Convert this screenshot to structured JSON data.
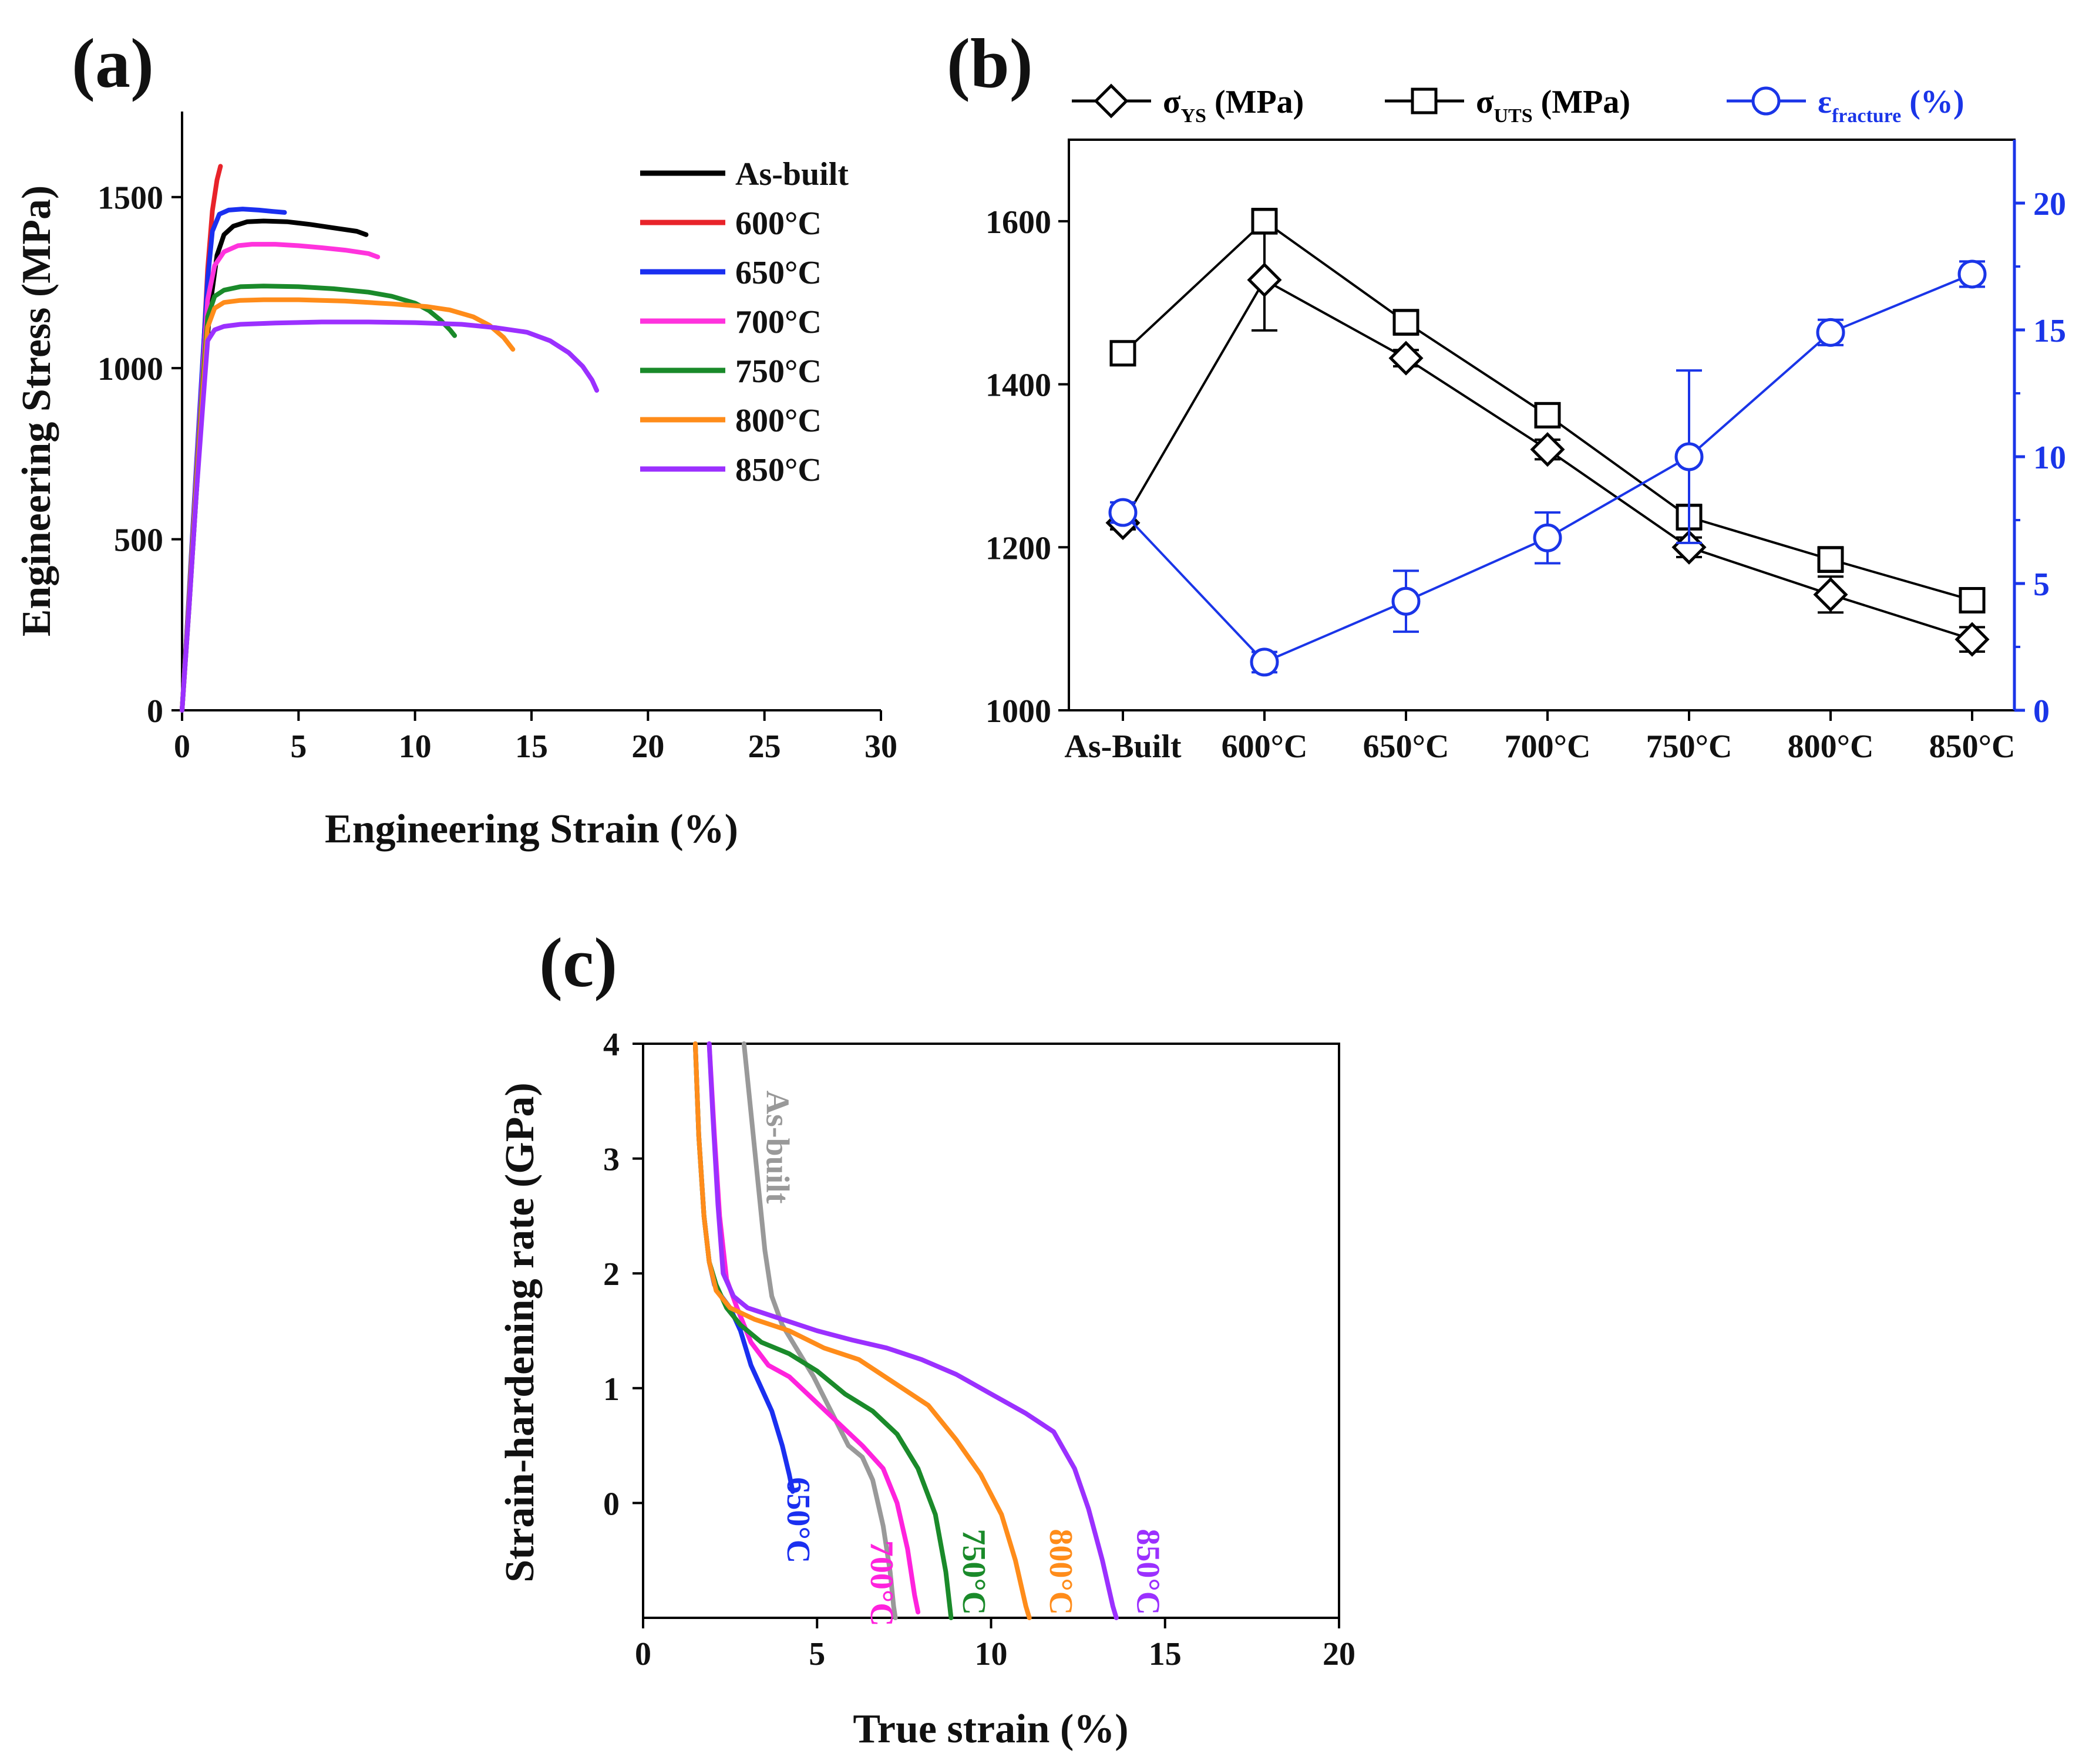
{
  "figure": {
    "panel_a_label": "(a)",
    "panel_b_label": "(b)",
    "panel_c_label": "(c)"
  },
  "chart_data": [
    {
      "id": "a",
      "type": "line",
      "title": "",
      "xlabel": "Engineering Strain (%)",
      "ylabel": "Engineering Stress (MPa)",
      "xlim": [
        0,
        30
      ],
      "ylim": [
        0,
        1750
      ],
      "xticks": [
        "0",
        "5",
        "10",
        "15",
        "20",
        "25",
        "30"
      ],
      "yticks": [
        "0",
        "500",
        "1000",
        "1500"
      ],
      "legend_position": "top-right",
      "series": [
        {
          "name": "As-built",
          "color": "#000000",
          "x": [
            0,
            0.3,
            0.6,
            0.9,
            1.2,
            1.5,
            1.8,
            2.2,
            2.8,
            3.5,
            4.5,
            5.5,
            6.5,
            7.5,
            7.9
          ],
          "y": [
            0,
            300,
            620,
            930,
            1180,
            1330,
            1390,
            1415,
            1428,
            1430,
            1428,
            1420,
            1410,
            1400,
            1390
          ]
        },
        {
          "name": "600°C",
          "color": "#e8232a",
          "x": [
            0,
            0.3,
            0.6,
            0.9,
            1.1,
            1.3,
            1.5,
            1.65
          ],
          "y": [
            0,
            330,
            690,
            1030,
            1290,
            1460,
            1550,
            1590
          ]
        },
        {
          "name": "650°C",
          "color": "#1a2ff0",
          "x": [
            0,
            0.3,
            0.6,
            0.9,
            1.1,
            1.3,
            1.6,
            2.0,
            2.6,
            3.3,
            3.9,
            4.4
          ],
          "y": [
            0,
            340,
            700,
            1040,
            1260,
            1400,
            1450,
            1462,
            1465,
            1462,
            1458,
            1455
          ]
        },
        {
          "name": "700°C",
          "color": "#ff33dd",
          "x": [
            0,
            0.3,
            0.6,
            0.9,
            1.1,
            1.4,
            1.8,
            2.4,
            3.0,
            4.0,
            5.0,
            6.0,
            7.0,
            8.0,
            8.4
          ],
          "y": [
            0,
            330,
            680,
            1000,
            1200,
            1300,
            1340,
            1358,
            1362,
            1362,
            1358,
            1352,
            1345,
            1335,
            1325
          ]
        },
        {
          "name": "750°C",
          "color": "#1a8a2a",
          "x": [
            0,
            0.3,
            0.6,
            0.9,
            1.1,
            1.4,
            1.8,
            2.5,
            3.5,
            5.0,
            6.5,
            8.0,
            9.0,
            10.0,
            10.6,
            11.1,
            11.5,
            11.7
          ],
          "y": [
            0,
            320,
            660,
            970,
            1150,
            1210,
            1228,
            1238,
            1240,
            1238,
            1232,
            1222,
            1210,
            1190,
            1168,
            1140,
            1112,
            1095
          ]
        },
        {
          "name": "800°C",
          "color": "#ff8c1a",
          "x": [
            0,
            0.3,
            0.6,
            0.9,
            1.1,
            1.4,
            1.8,
            2.5,
            3.5,
            5.0,
            7.0,
            9.0,
            10.5,
            11.5,
            12.5,
            13.2,
            13.8,
            14.2
          ],
          "y": [
            0,
            310,
            640,
            940,
            1120,
            1175,
            1192,
            1198,
            1200,
            1200,
            1196,
            1188,
            1180,
            1170,
            1150,
            1125,
            1090,
            1055
          ]
        },
        {
          "name": "850°C",
          "color": "#9b30ff",
          "x": [
            0,
            0.3,
            0.6,
            0.9,
            1.1,
            1.4,
            1.8,
            2.5,
            4.0,
            6.0,
            8.0,
            10.0,
            12.0,
            13.5,
            14.8,
            15.8,
            16.6,
            17.2,
            17.6,
            17.8
          ],
          "y": [
            0,
            300,
            620,
            900,
            1080,
            1112,
            1122,
            1128,
            1132,
            1135,
            1135,
            1133,
            1128,
            1118,
            1105,
            1080,
            1045,
            1005,
            965,
            935
          ]
        }
      ]
    },
    {
      "id": "b",
      "type": "line",
      "title": "",
      "xlabel": "",
      "ylabel": "",
      "categories": [
        "As-Built",
        "600°C",
        "650°C",
        "700°C",
        "750°C",
        "800°C",
        "850°C"
      ],
      "ylim": [
        1000,
        1700
      ],
      "y2lim": [
        0,
        22.5
      ],
      "yticks": [
        "1000",
        "1200",
        "1400",
        "1600"
      ],
      "y2ticks": [
        "0",
        "5",
        "10",
        "15",
        "20"
      ],
      "legend_position": "top",
      "series": [
        {
          "name": "σYS (MPa)",
          "label_main": "σ",
          "label_sub": "YS",
          "label_unit": " (MPa)",
          "marker": "diamond",
          "axis": "left",
          "color": "#000000",
          "values": [
            1230,
            1528,
            1432,
            1320,
            1200,
            1142,
            1087
          ],
          "errors": [
            8,
            62,
            10,
            12,
            12,
            22,
            15
          ]
        },
        {
          "name": "σUTS (MPa)",
          "label_main": "σ",
          "label_sub": "UTS",
          "label_unit": " (MPa)",
          "marker": "square",
          "axis": "left",
          "color": "#000000",
          "values": [
            1438,
            1600,
            1476,
            1362,
            1237,
            1185,
            1135
          ],
          "errors": [
            6,
            15,
            15,
            10,
            15,
            15,
            10
          ]
        },
        {
          "name": "εfracture (%)",
          "label_main": "ε",
          "label_sub": "fracture",
          "label_unit": " (%)",
          "marker": "circle",
          "axis": "right",
          "color": "#1a35e8",
          "values": [
            7.8,
            1.9,
            4.3,
            6.8,
            10.0,
            14.9,
            17.2
          ],
          "errors": [
            0.4,
            0.4,
            1.2,
            1.0,
            3.4,
            0.5,
            0.5
          ]
        }
      ]
    },
    {
      "id": "c",
      "type": "line",
      "title": "",
      "xlabel": "True strain (%)",
      "ylabel": "Strain-hardening rate (GPa)",
      "xlim": [
        0,
        20
      ],
      "ylim": [
        -1,
        4
      ],
      "xticks": [
        "0",
        "5",
        "10",
        "15",
        "20"
      ],
      "yticks": [
        "0",
        "1",
        "2",
        "3",
        "4"
      ],
      "series": [
        {
          "name": "As-built",
          "color": "#999999",
          "x": [
            2.9,
            3.1,
            3.3,
            3.5,
            3.7,
            4.0,
            4.4,
            4.9,
            5.4,
            5.9,
            6.3,
            6.6,
            6.9,
            7.1,
            7.2,
            7.25
          ],
          "y": [
            4.0,
            3.4,
            2.8,
            2.2,
            1.8,
            1.55,
            1.35,
            1.1,
            0.8,
            0.5,
            0.4,
            0.2,
            -0.2,
            -0.6,
            -0.9,
            -1.0
          ],
          "label": "As-built"
        },
        {
          "name": "650°C",
          "color": "#1a2ff0",
          "x": [
            1.5,
            1.6,
            1.75,
            1.9,
            2.05,
            2.25,
            2.5,
            2.8,
            3.1,
            3.4,
            3.7,
            4.0,
            4.2,
            4.3
          ],
          "y": [
            4.0,
            3.2,
            2.5,
            2.1,
            1.9,
            1.8,
            1.7,
            1.5,
            1.2,
            1.0,
            0.8,
            0.5,
            0.25,
            0.1
          ],
          "label": "650°C"
        },
        {
          "name": "700°C",
          "color": "#ff22dd",
          "x": [
            1.9,
            2.05,
            2.2,
            2.4,
            2.7,
            3.1,
            3.6,
            4.2,
            4.9,
            5.6,
            6.3,
            6.9,
            7.3,
            7.6,
            7.8,
            7.9
          ],
          "y": [
            4.0,
            3.2,
            2.5,
            1.95,
            1.7,
            1.4,
            1.2,
            1.1,
            0.9,
            0.7,
            0.5,
            0.3,
            0.0,
            -0.4,
            -0.8,
            -0.95
          ],
          "label": "700°C"
        },
        {
          "name": "750°C",
          "color": "#1a8a2a",
          "x": [
            1.5,
            1.6,
            1.75,
            1.9,
            2.1,
            2.4,
            2.8,
            3.4,
            4.2,
            5.0,
            5.8,
            6.6,
            7.3,
            7.9,
            8.4,
            8.7,
            8.85
          ],
          "y": [
            4.0,
            3.2,
            2.5,
            2.1,
            1.9,
            1.7,
            1.55,
            1.4,
            1.3,
            1.15,
            0.95,
            0.8,
            0.6,
            0.3,
            -0.1,
            -0.6,
            -1.0
          ],
          "label": "750°C"
        },
        {
          "name": "800°C",
          "color": "#ff8c1a",
          "x": [
            1.5,
            1.6,
            1.75,
            1.9,
            2.1,
            2.5,
            3.2,
            4.2,
            5.2,
            6.2,
            7.2,
            8.2,
            9.0,
            9.7,
            10.3,
            10.7,
            11.0,
            11.1
          ],
          "y": [
            4.0,
            3.2,
            2.5,
            2.1,
            1.85,
            1.7,
            1.6,
            1.5,
            1.35,
            1.25,
            1.05,
            0.85,
            0.55,
            0.25,
            -0.1,
            -0.5,
            -0.9,
            -1.0
          ],
          "label": "800°C"
        },
        {
          "name": "850°C",
          "color": "#9b30ff",
          "x": [
            1.9,
            2.0,
            2.15,
            2.3,
            2.6,
            3.0,
            4.0,
            5.0,
            6.0,
            7.0,
            8.0,
            9.0,
            10.0,
            11.0,
            11.8,
            12.4,
            12.8,
            13.2,
            13.5,
            13.6
          ],
          "y": [
            4.0,
            3.4,
            2.6,
            2.0,
            1.8,
            1.7,
            1.6,
            1.5,
            1.42,
            1.35,
            1.25,
            1.12,
            0.95,
            0.78,
            0.62,
            0.3,
            -0.05,
            -0.5,
            -0.9,
            -1.0
          ],
          "label": "850°C"
        }
      ]
    }
  ]
}
